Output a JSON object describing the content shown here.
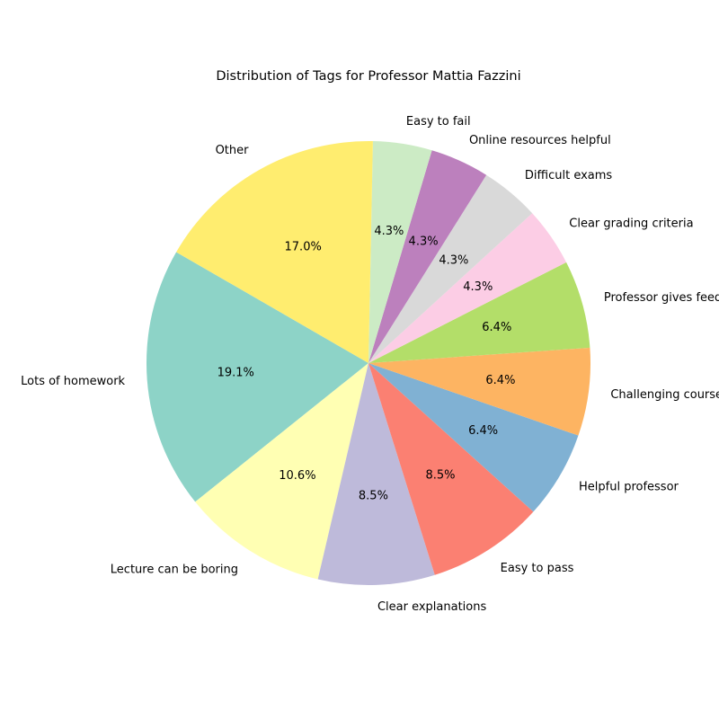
{
  "chart_data": {
    "type": "pie",
    "title": "Distribution of Tags for Professor Mattia Fazzini",
    "start_angle_deg": 150,
    "direction": "counterclockwise",
    "slices": [
      {
        "label": "Lots of homework",
        "value": 19.1,
        "pct_label": "19.1%",
        "color": "#8dd3c7"
      },
      {
        "label": "Lecture can be boring",
        "value": 10.6,
        "pct_label": "10.6%",
        "color": "#ffffb3"
      },
      {
        "label": "Clear explanations",
        "value": 8.5,
        "pct_label": "8.5%",
        "color": "#bebada"
      },
      {
        "label": "Easy to pass",
        "value": 8.5,
        "pct_label": "8.5%",
        "color": "#fb8072"
      },
      {
        "label": "Helpful professor",
        "value": 6.4,
        "pct_label": "6.4%",
        "color": "#80b1d3"
      },
      {
        "label": "Challenging course",
        "value": 6.4,
        "pct_label": "6.4%",
        "color": "#fdb462"
      },
      {
        "label": "Professor gives feedback",
        "value": 6.4,
        "pct_label": "6.4%",
        "color": "#b3de69"
      },
      {
        "label": "Clear grading criteria",
        "value": 4.3,
        "pct_label": "4.3%",
        "color": "#fccde5"
      },
      {
        "label": "Difficult exams",
        "value": 4.3,
        "pct_label": "4.3%",
        "color": "#d9d9d9"
      },
      {
        "label": "Online resources helpful",
        "value": 4.3,
        "pct_label": "4.3%",
        "color": "#bc80bd"
      },
      {
        "label": "Easy to fail",
        "value": 4.3,
        "pct_label": "4.3%",
        "color": "#ccebc5"
      },
      {
        "label": "Other",
        "value": 17.0,
        "pct_label": "17.0%",
        "color": "#ffed6f"
      }
    ]
  }
}
